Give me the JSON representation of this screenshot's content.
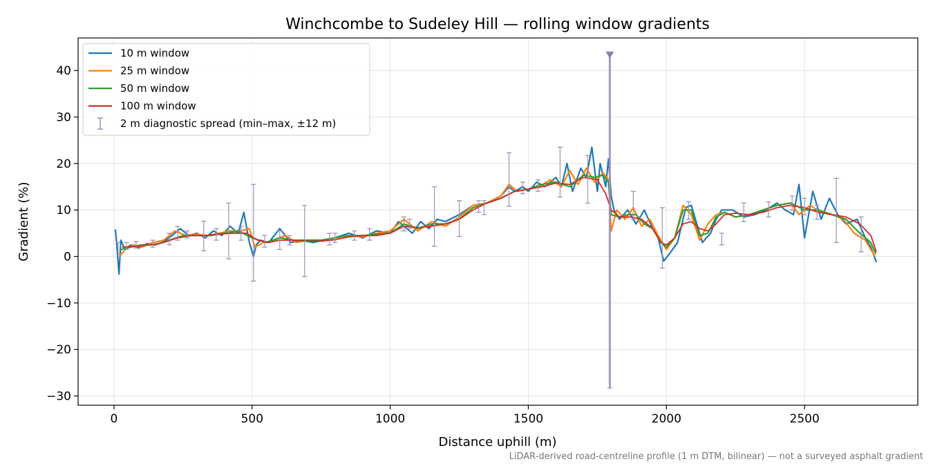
{
  "chart_data": {
    "type": "line",
    "title": "Winchcombe to Sudeley Hill — rolling window gradients",
    "xlabel": "Distance uphill (m)",
    "ylabel": "Gradient (%)",
    "footnote": "LiDAR-derived road-centreline profile (1 m DTM, bilinear) — not a surveyed asphalt gradient",
    "xlim": [
      -130,
      2910
    ],
    "ylim": [
      -32,
      47
    ],
    "x_ticks": [
      0,
      500,
      1000,
      1500,
      2000,
      2500
    ],
    "x_tick_labels": [
      "0",
      "500",
      "1000",
      "1500",
      "2000",
      "2500"
    ],
    "y_ticks": [
      -30,
      -20,
      -10,
      0,
      10,
      20,
      30,
      40
    ],
    "y_tick_labels": [
      "−30",
      "−20",
      "−10",
      "0",
      "10",
      "20",
      "30",
      "40"
    ],
    "grid": true,
    "legend_position": "top-left",
    "series": [
      {
        "name": "10 m window",
        "color": "#1f77b4",
        "x": [
          5,
          12,
          18,
          25,
          40,
          60,
          90,
          120,
          150,
          180,
          210,
          240,
          270,
          300,
          330,
          360,
          390,
          420,
          450,
          470,
          490,
          505,
          515,
          530,
          560,
          600,
          640,
          680,
          720,
          760,
          800,
          850,
          900,
          950,
          1000,
          1030,
          1050,
          1080,
          1110,
          1140,
          1170,
          1200,
          1250,
          1300,
          1350,
          1400,
          1430,
          1450,
          1480,
          1500,
          1530,
          1560,
          1600,
          1620,
          1640,
          1660,
          1690,
          1710,
          1730,
          1750,
          1760,
          1780,
          1790,
          1800,
          1810,
          1830,
          1860,
          1890,
          1920,
          1950,
          1970,
          1990,
          2010,
          2040,
          2070,
          2090,
          2110,
          2130,
          2160,
          2180,
          2200,
          2240,
          2280,
          2320,
          2360,
          2400,
          2430,
          2460,
          2480,
          2500,
          2530,
          2560,
          2590,
          2620,
          2650,
          2690,
          2720,
          2740,
          2760
        ],
        "y": [
          5.8,
          1.0,
          -3.8,
          3.5,
          1.5,
          2.5,
          1.8,
          2.8,
          2.5,
          3.2,
          4.5,
          6.0,
          4.5,
          5.0,
          4.0,
          5.5,
          4.5,
          6.5,
          5.0,
          9.5,
          3.0,
          0.0,
          2.5,
          3.5,
          3.0,
          6.0,
          3.0,
          3.5,
          3.0,
          3.5,
          4.0,
          5.0,
          4.0,
          5.5,
          5.0,
          7.5,
          6.5,
          5.0,
          7.5,
          6.0,
          8.0,
          7.5,
          9.0,
          11.0,
          11.5,
          13.0,
          15.0,
          14.0,
          15.0,
          14.0,
          16.0,
          15.0,
          17.0,
          15.0,
          20.0,
          14.0,
          19.0,
          17.0,
          23.5,
          14.0,
          20.0,
          15.0,
          21.0,
          13.0,
          10.0,
          8.0,
          10.0,
          7.0,
          10.0,
          6.0,
          4.0,
          -1.0,
          0.5,
          3.0,
          10.5,
          11.0,
          7.0,
          3.0,
          5.0,
          8.0,
          10.0,
          10.0,
          8.5,
          9.0,
          10.0,
          11.5,
          10.0,
          9.0,
          15.5,
          4.0,
          14.0,
          8.0,
          12.5,
          9.0,
          7.0,
          8.0,
          4.0,
          2.0,
          -1.2
        ]
      },
      {
        "name": "25 m window",
        "color": "#ff7f0e",
        "x": [
          20,
          40,
          70,
          100,
          140,
          180,
          220,
          260,
          300,
          340,
          380,
          420,
          460,
          490,
          510,
          540,
          580,
          620,
          660,
          700,
          750,
          800,
          850,
          900,
          950,
          1000,
          1050,
          1100,
          1150,
          1200,
          1250,
          1300,
          1350,
          1400,
          1430,
          1460,
          1500,
          1540,
          1580,
          1620,
          1650,
          1680,
          1710,
          1740,
          1770,
          1790,
          1800,
          1820,
          1850,
          1880,
          1910,
          1940,
          1970,
          2000,
          2030,
          2060,
          2090,
          2120,
          2150,
          2180,
          2210,
          2250,
          2300,
          2350,
          2400,
          2450,
          2480,
          2520,
          2560,
          2600,
          2640,
          2680,
          2720,
          2755
        ],
        "y": [
          0.0,
          1.5,
          2.5,
          2.0,
          3.0,
          3.5,
          5.5,
          4.5,
          4.8,
          4.5,
          5.0,
          5.5,
          5.5,
          6.0,
          2.0,
          3.0,
          3.5,
          4.5,
          3.0,
          3.5,
          3.5,
          4.0,
          4.5,
          4.2,
          5.0,
          5.5,
          8.0,
          5.5,
          7.5,
          6.5,
          8.5,
          11.0,
          11.5,
          13.0,
          15.5,
          14.0,
          14.5,
          15.0,
          16.5,
          15.0,
          18.5,
          15.5,
          19.0,
          16.0,
          18.0,
          16.5,
          5.5,
          10.0,
          8.0,
          10.5,
          6.5,
          8.0,
          4.5,
          1.5,
          4.0,
          11.0,
          9.0,
          3.5,
          7.0,
          9.0,
          9.5,
          8.5,
          9.0,
          10.0,
          11.0,
          11.5,
          9.0,
          11.0,
          9.5,
          9.0,
          8.0,
          5.0,
          3.5,
          0.0
        ]
      },
      {
        "name": "50 m window",
        "color": "#2ca02c",
        "x": [
          25,
          60,
          100,
          150,
          200,
          250,
          300,
          350,
          400,
          450,
          500,
          550,
          600,
          650,
          700,
          750,
          800,
          850,
          900,
          950,
          1000,
          1050,
          1100,
          1150,
          1200,
          1250,
          1300,
          1350,
          1400,
          1450,
          1500,
          1550,
          1600,
          1650,
          1700,
          1740,
          1770,
          1790,
          1800,
          1830,
          1860,
          1890,
          1920,
          1950,
          1980,
          2000,
          2030,
          2060,
          2090,
          2120,
          2150,
          2180,
          2210,
          2250,
          2300,
          2350,
          2400,
          2450,
          2500,
          2550,
          2600,
          2650,
          2700,
          2740,
          2758
        ],
        "y": [
          1.5,
          2.0,
          2.5,
          2.5,
          3.5,
          4.5,
          4.5,
          4.5,
          5.0,
          5.5,
          4.0,
          3.0,
          4.0,
          3.5,
          3.5,
          3.5,
          4.0,
          4.5,
          4.5,
          4.8,
          5.0,
          7.0,
          6.0,
          7.0,
          7.0,
          8.0,
          10.5,
          11.5,
          12.5,
          14.0,
          14.5,
          15.5,
          16.0,
          15.0,
          17.5,
          17.0,
          17.5,
          16.0,
          9.0,
          8.5,
          9.0,
          9.0,
          7.0,
          6.0,
          3.0,
          2.0,
          4.0,
          10.0,
          10.0,
          4.5,
          5.0,
          8.5,
          9.5,
          8.5,
          9.0,
          10.0,
          11.0,
          11.5,
          10.0,
          10.0,
          9.0,
          8.0,
          5.0,
          3.0,
          0.5
        ]
      },
      {
        "name": "100 m window",
        "color": "#d62728",
        "x": [
          30,
          80,
          130,
          180,
          230,
          280,
          330,
          380,
          430,
          480,
          520,
          560,
          600,
          650,
          700,
          750,
          800,
          850,
          900,
          950,
          1000,
          1050,
          1100,
          1150,
          1200,
          1250,
          1300,
          1350,
          1400,
          1450,
          1500,
          1550,
          1600,
          1650,
          1700,
          1750,
          1780,
          1800,
          1830,
          1870,
          1910,
          1950,
          1980,
          2000,
          2030,
          2060,
          2090,
          2120,
          2150,
          2180,
          2210,
          2250,
          2300,
          2350,
          2400,
          2450,
          2500,
          2550,
          2600,
          2650,
          2700,
          2740,
          2760
        ],
        "y": [
          2.0,
          2.2,
          2.5,
          3.0,
          4.0,
          4.5,
          4.5,
          4.8,
          5.0,
          5.0,
          3.5,
          3.0,
          3.5,
          3.5,
          3.3,
          3.3,
          3.6,
          4.2,
          4.5,
          4.5,
          5.0,
          6.5,
          6.2,
          6.5,
          7.0,
          8.0,
          10.0,
          11.5,
          12.5,
          14.0,
          14.5,
          15.0,
          15.8,
          15.5,
          17.0,
          16.5,
          13.5,
          10.0,
          8.5,
          8.5,
          8.0,
          6.0,
          3.0,
          2.5,
          4.0,
          7.0,
          7.5,
          6.0,
          5.5,
          7.0,
          9.0,
          9.3,
          9.0,
          9.5,
          10.5,
          11.0,
          10.5,
          9.5,
          9.0,
          8.5,
          7.0,
          4.5,
          1.0
        ]
      }
    ],
    "error_series": {
      "name": "2 m diagnostic spread (min–max, ±12 m)",
      "color": "#9d8fb8",
      "bars": [
        {
          "x": 15,
          "low": 0.5,
          "high": 3.0
        },
        {
          "x": 45,
          "low": 1.5,
          "high": 3.0
        },
        {
          "x": 80,
          "low": 1.8,
          "high": 3.2
        },
        {
          "x": 140,
          "low": 2.0,
          "high": 3.5
        },
        {
          "x": 200,
          "low": 2.5,
          "high": 5.0
        },
        {
          "x": 230,
          "low": 3.5,
          "high": 6.5
        },
        {
          "x": 265,
          "low": 4.0,
          "high": 5.5
        },
        {
          "x": 325,
          "low": 1.2,
          "high": 7.6
        },
        {
          "x": 370,
          "low": 3.5,
          "high": 6.0
        },
        {
          "x": 415,
          "low": -0.5,
          "high": 11.5
        },
        {
          "x": 460,
          "low": 3.5,
          "high": 6.5
        },
        {
          "x": 505,
          "low": -5.3,
          "high": 15.5
        },
        {
          "x": 545,
          "low": 2.0,
          "high": 4.5
        },
        {
          "x": 600,
          "low": 1.5,
          "high": 5.5
        },
        {
          "x": 635,
          "low": 2.5,
          "high": 4.5
        },
        {
          "x": 690,
          "low": -4.3,
          "high": 11.0
        },
        {
          "x": 780,
          "low": 2.5,
          "high": 5.0
        },
        {
          "x": 800,
          "low": 3.0,
          "high": 5.0
        },
        {
          "x": 870,
          "low": 3.5,
          "high": 5.5
        },
        {
          "x": 925,
          "low": 3.5,
          "high": 6.0
        },
        {
          "x": 1050,
          "low": 5.5,
          "high": 8.5
        },
        {
          "x": 1070,
          "low": 6.0,
          "high": 8.0
        },
        {
          "x": 1160,
          "low": 2.2,
          "high": 15.0
        },
        {
          "x": 1250,
          "low": 4.3,
          "high": 12.0
        },
        {
          "x": 1320,
          "low": 9.5,
          "high": 12.0
        },
        {
          "x": 1340,
          "low": 9.0,
          "high": 12.0
        },
        {
          "x": 1430,
          "low": 10.8,
          "high": 22.3
        },
        {
          "x": 1480,
          "low": 13.5,
          "high": 16.0
        },
        {
          "x": 1535,
          "low": 14.0,
          "high": 16.5
        },
        {
          "x": 1615,
          "low": 12.8,
          "high": 23.5
        },
        {
          "x": 1715,
          "low": 11.5,
          "high": 21.7
        },
        {
          "x": 1795,
          "low": -28.3,
          "high": 43.5
        },
        {
          "x": 1880,
          "low": 8.0,
          "high": 14.0
        },
        {
          "x": 1985,
          "low": -2.5,
          "high": 10.5
        },
        {
          "x": 2080,
          "low": 8.0,
          "high": 11.8
        },
        {
          "x": 2200,
          "low": 2.5,
          "high": 5.0
        },
        {
          "x": 2280,
          "low": 7.5,
          "high": 11.5
        },
        {
          "x": 2370,
          "low": 8.5,
          "high": 11.7
        },
        {
          "x": 2455,
          "low": 10.0,
          "high": 13.0
        },
        {
          "x": 2500,
          "low": 9.0,
          "high": 12.5
        },
        {
          "x": 2545,
          "low": 8.0,
          "high": 11.0
        },
        {
          "x": 2615,
          "low": 3.0,
          "high": 16.8
        },
        {
          "x": 2705,
          "low": 1.0,
          "high": 8.5
        }
      ]
    }
  }
}
